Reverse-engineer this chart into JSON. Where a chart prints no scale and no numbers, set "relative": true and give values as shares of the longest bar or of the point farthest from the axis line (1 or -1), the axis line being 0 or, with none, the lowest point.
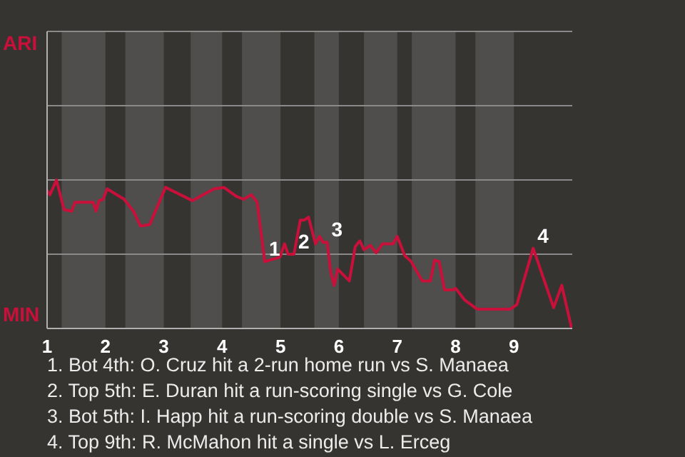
{
  "chart_data": {
    "type": "line",
    "relative": true,
    "x": [
      1.0,
      1.05,
      1.16,
      1.29,
      1.42,
      1.48,
      1.79,
      1.84,
      1.89,
      1.96,
      2.03,
      2.32,
      2.48,
      2.6,
      2.76,
      3.03,
      3.49,
      3.86,
      4.03,
      4.24,
      4.37,
      4.5,
      4.6,
      4.73,
      4.99,
      5.07,
      5.13,
      5.23,
      5.34,
      5.41,
      5.48,
      5.6,
      5.67,
      5.73,
      5.8,
      5.86,
      5.92,
      5.98,
      6.18,
      6.28,
      6.36,
      6.43,
      6.54,
      6.64,
      6.75,
      6.93,
      7.0,
      7.13,
      7.24,
      7.43,
      7.57,
      7.64,
      7.72,
      7.81,
      7.96,
      8.0,
      8.16,
      8.37,
      8.57,
      8.68,
      8.94,
      9.05,
      9.33,
      9.68,
      9.82,
      9.99
    ],
    "series": [
      {
        "color": "#c8103a",
        "values": [
          0.93,
          0.9,
          1,
          0.8,
          0.79,
          0.85,
          0.85,
          0.79,
          0.86,
          0.87,
          0.94,
          0.87,
          0.79,
          0.69,
          0.7,
          0.95,
          0.86,
          0.94,
          0.95,
          0.89,
          0.87,
          0.9,
          0.85,
          0.45,
          0.48,
          0.57,
          0.5,
          0.5,
          0.73,
          0.73,
          0.75,
          0.57,
          0.62,
          0.58,
          0.58,
          0.38,
          0.29,
          0.4,
          0.32,
          0.55,
          0.59,
          0.53,
          0.56,
          0.51,
          0.57,
          0.57,
          0.62,
          0.49,
          0.45,
          0.32,
          0.32,
          0.46,
          0.45,
          0.26,
          0.26,
          0.27,
          0.19,
          0.13,
          0.13,
          0.13,
          0.13,
          0.16,
          0.54,
          0.14,
          0.29,
          0
        ]
      }
    ],
    "xlim": [
      1,
      10
    ],
    "xticks": [
      1,
      2,
      3,
      4,
      5,
      6,
      7,
      8,
      9
    ],
    "marker": "none",
    "line_style": "solid",
    "ref_lines": [
      {
        "axis": "y",
        "value": 0.5,
        "color": "#8a8a8a"
      },
      {
        "axis": "y",
        "value": 1,
        "color": "#8a8a8a"
      },
      {
        "axis": "y",
        "value": 1.5,
        "color": "#8a8a8a"
      },
      {
        "axis": "y",
        "value": 2,
        "color": "#8a8a8a"
      }
    ],
    "bands": [
      {
        "axis": "x",
        "from": 1.25,
        "to": 2.0,
        "color": "#4f4e4d"
      },
      {
        "axis": "x",
        "from": 2.34,
        "to": 3.0,
        "color": "#4f4e4d"
      },
      {
        "axis": "x",
        "from": 3.46,
        "to": 4.0,
        "color": "#4f4e4d"
      },
      {
        "axis": "x",
        "from": 4.34,
        "to": 5.0,
        "color": "#4f4e4d"
      },
      {
        "axis": "x",
        "from": 5.58,
        "to": 6.0,
        "color": "#4f4e4d"
      },
      {
        "axis": "x",
        "from": 6.43,
        "to": 7.0,
        "color": "#4f4e4d"
      },
      {
        "axis": "x",
        "from": 7.25,
        "to": 8.0,
        "color": "#4f4e4d"
      },
      {
        "axis": "x",
        "from": 8.34,
        "to": 9.0,
        "color": "#4f4e4d"
      }
    ],
    "annotations": [
      "ARI",
      "MIN",
      {
        "text": "1",
        "x": 4.73,
        "y": 0.45
      },
      {
        "text": "2",
        "x": 5.23,
        "y": 0.5
      },
      {
        "text": "3",
        "x": 5.8,
        "y": 0.58
      },
      {
        "text": "4",
        "x": 9.33,
        "y": 0.54
      },
      "1. Bot 4th: O. Cruz hit a 2-run home run vs S. Manaea",
      "2. Top 5th: E. Duran hit a run-scoring single vs G. Cole",
      "3. Bot 5th: I. Happ hit a run-scoring double vs S. Manaea",
      "4. Top 9th: R. McMahon hit a single vs L. Erceg"
    ]
  }
}
